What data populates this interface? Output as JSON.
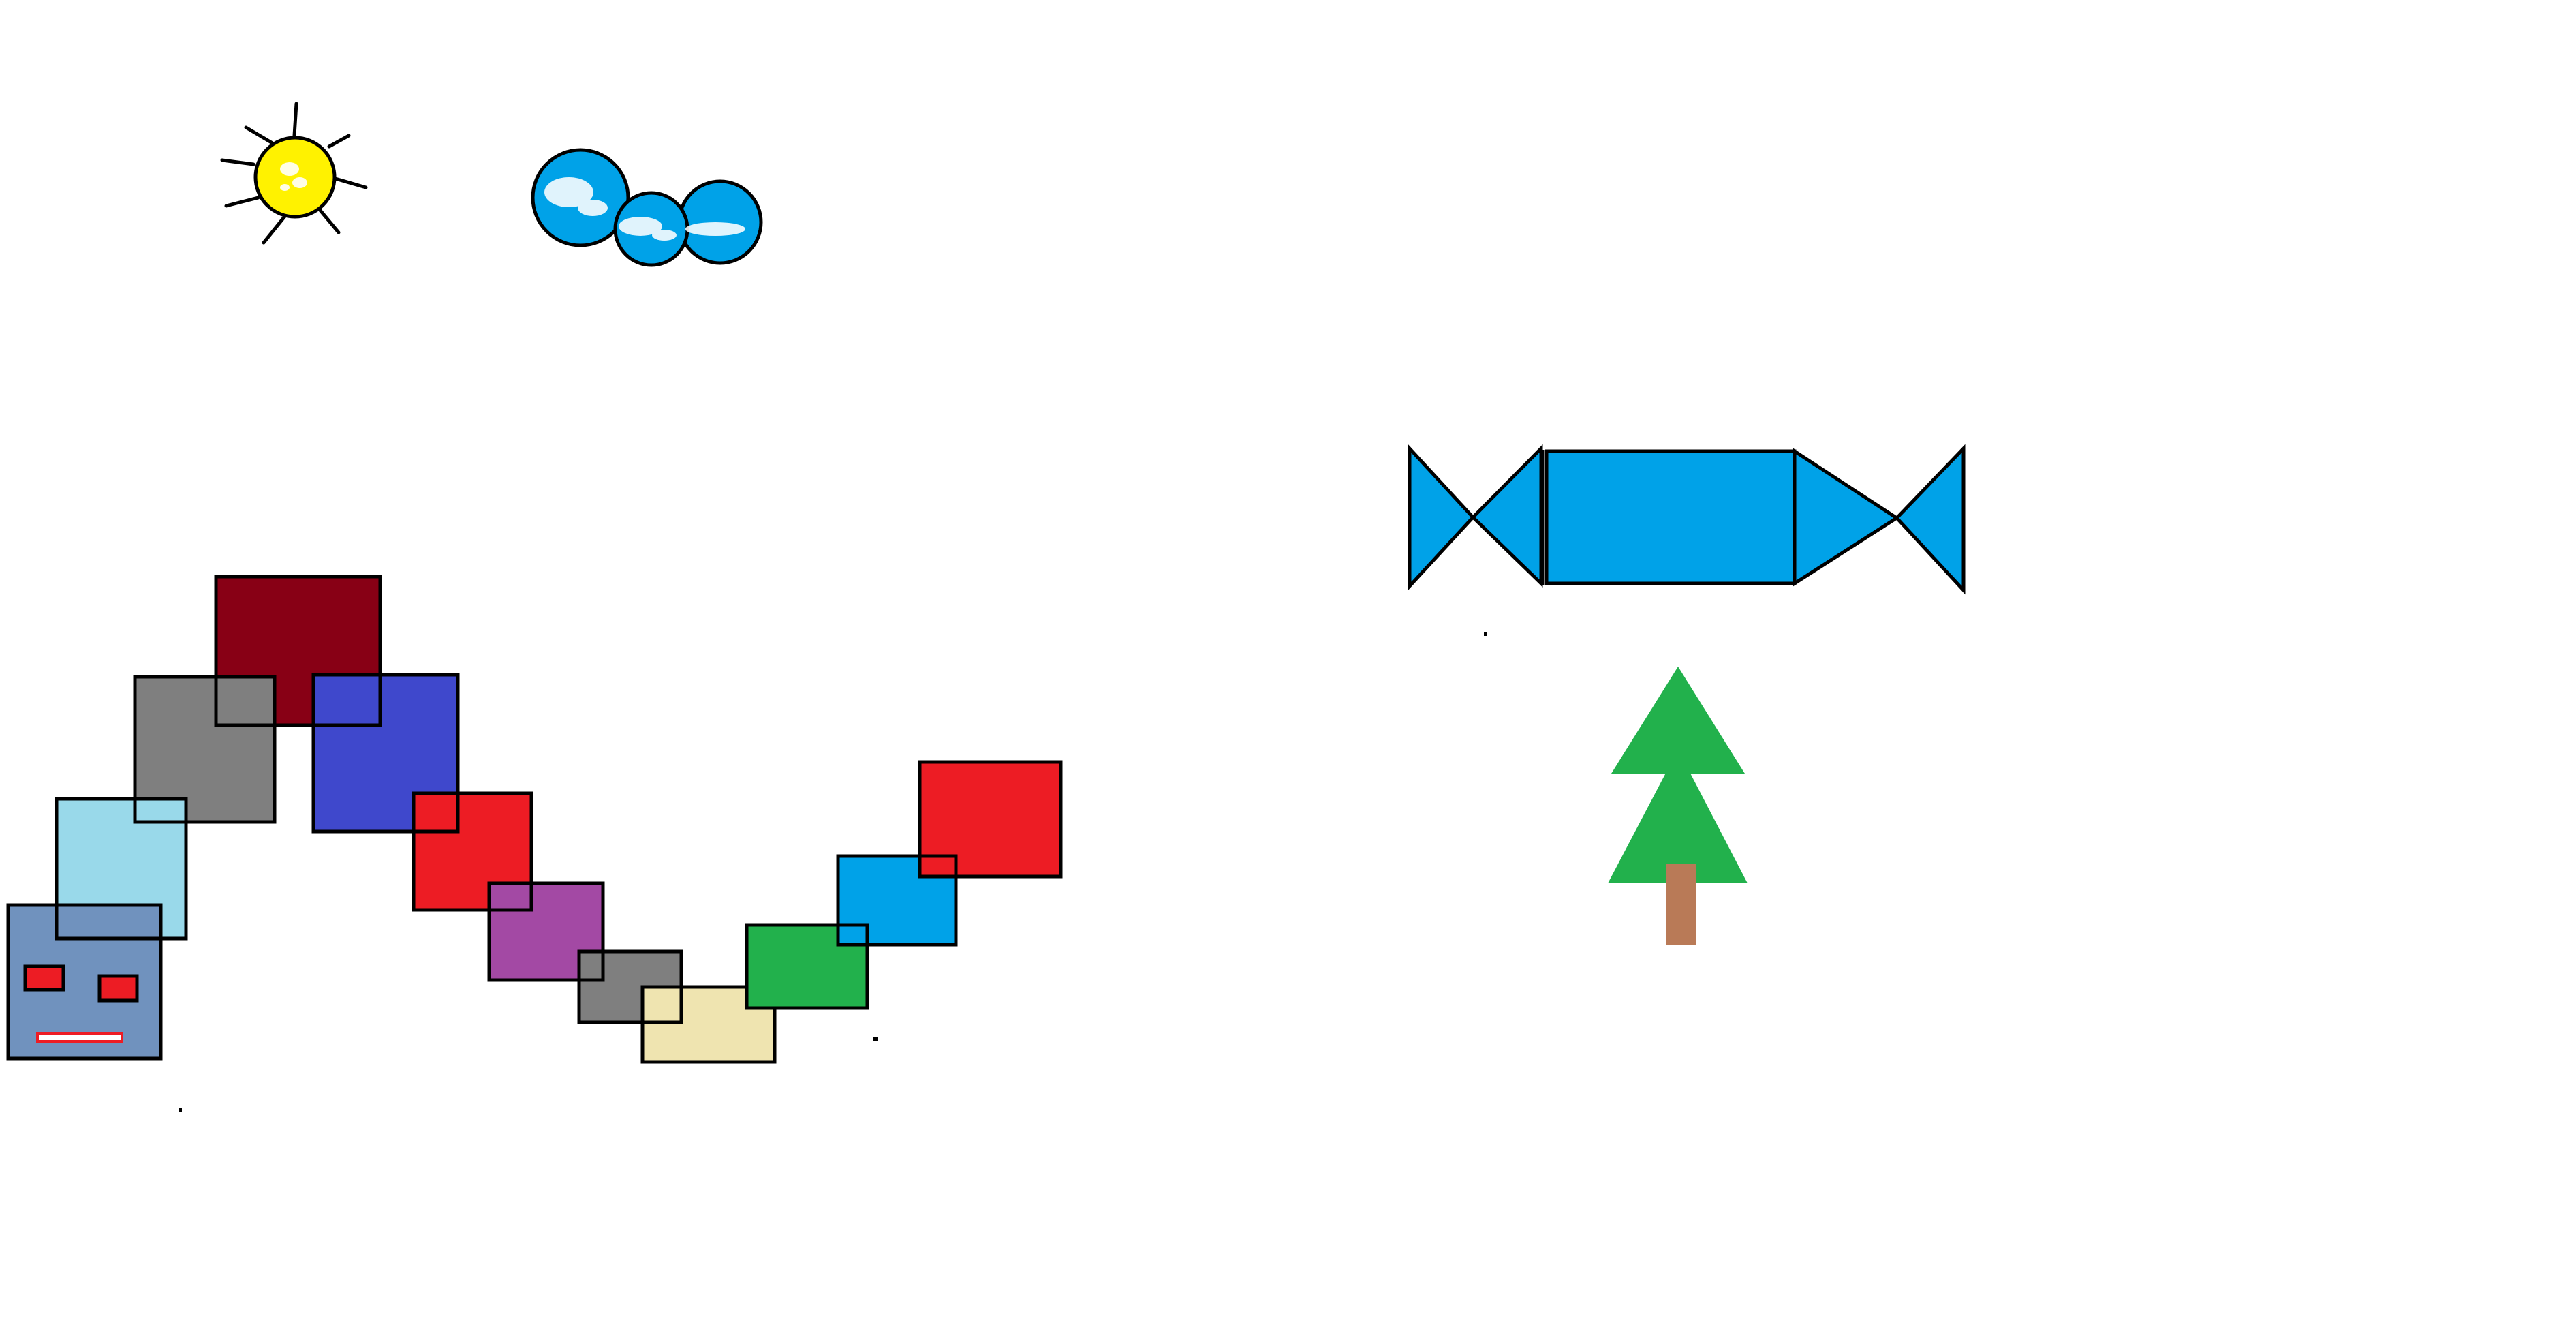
{
  "canvas": {
    "background": "#ffffff"
  },
  "sun": {
    "icon": "sun-icon",
    "fill": "#fff200",
    "outline": "#000000",
    "ray_count": 8
  },
  "cloud": {
    "icon": "cloud-icon",
    "fill": "#00a2e8",
    "outline": "#000000",
    "puff_count": 3
  },
  "caterpillar": {
    "segments": [
      {
        "name": "dark-red",
        "color": "#880015"
      },
      {
        "name": "gray",
        "color": "#7f7f7f"
      },
      {
        "name": "light-blue",
        "color": "#99d9ea"
      },
      {
        "name": "head-steel-blue",
        "color": "#7092be"
      },
      {
        "name": "blue",
        "color": "#3f48cc"
      },
      {
        "name": "red",
        "color": "#ed1c24"
      },
      {
        "name": "purple",
        "color": "#a349a4"
      },
      {
        "name": "gray-2",
        "color": "#7f7f7f"
      },
      {
        "name": "beige",
        "color": "#efe4b0"
      },
      {
        "name": "green",
        "color": "#22b14c"
      },
      {
        "name": "cyan",
        "color": "#00a2e8"
      },
      {
        "name": "red-2",
        "color": "#ed1c24"
      }
    ],
    "face": {
      "eye_color": "#ed1c24",
      "mouth_outline": "#ed1c24",
      "mouth_fill": "#ffffff"
    }
  },
  "candy": {
    "icon": "candy-icon",
    "fill": "#00a2e8",
    "outline": "#000000"
  },
  "tree": {
    "icon": "tree-icon",
    "foliage_color": "#22b14c",
    "trunk_color": "#b97a57"
  }
}
